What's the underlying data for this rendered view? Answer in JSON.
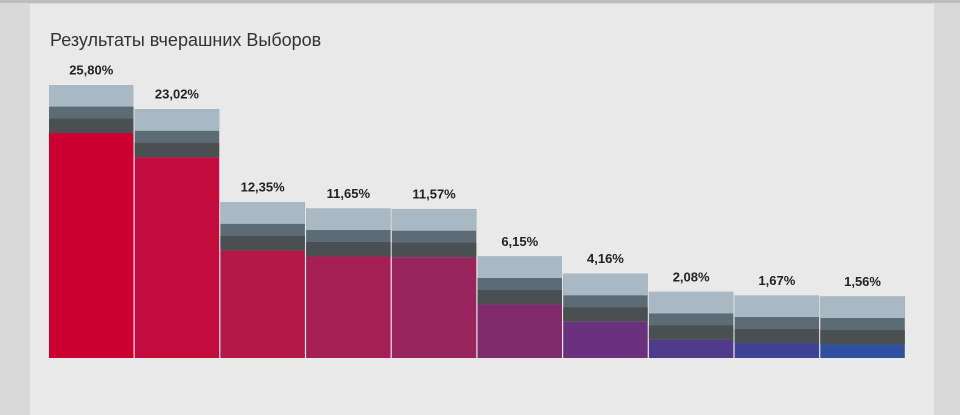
{
  "chart_data": {
    "type": "bar",
    "title": "Результаты вчерашних Выборов",
    "values": [
      25.8,
      23.02,
      12.35,
      11.65,
      11.57,
      6.15,
      4.16,
      2.08,
      1.67,
      1.56
    ],
    "value_labels": [
      "25,80%",
      "23,02%",
      "12,35%",
      "11,65%",
      "11,57%",
      "6,15%",
      "4,16%",
      "2,08%",
      "1,67%",
      "1,56%"
    ],
    "colors": [
      "#cc0030",
      "#c20c3d",
      "#b31848",
      "#a51f53",
      "#98255d",
      "#7f2b6c",
      "#6a327e",
      "#503a8c",
      "#3f4396",
      "#2f4fa0"
    ]
  }
}
